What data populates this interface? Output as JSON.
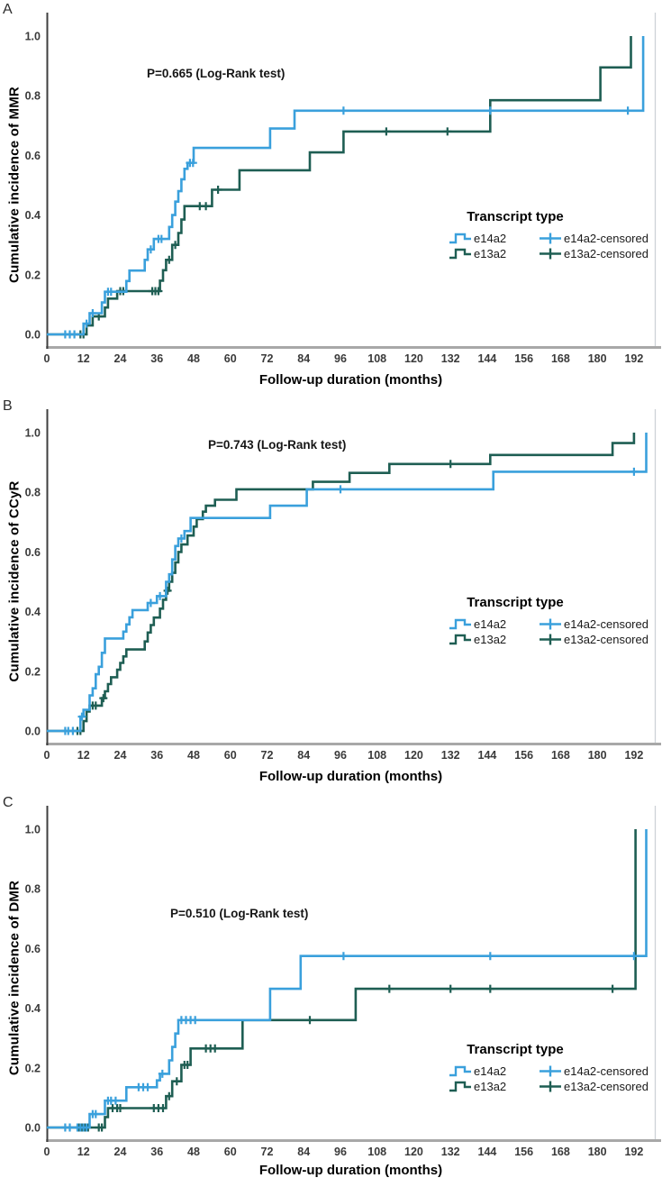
{
  "chart_data": [
    {
      "panel": "A",
      "type": "line",
      "subtype": "cumulative-incidence-step",
      "pvalue": "P=0.665 (Log-Rank test)",
      "xlabel": "Follow-up duration (months)",
      "ylabel": "Cumulative incidence of MMR",
      "xlim": [
        0,
        198.8
      ],
      "ylim": [
        0,
        1.0
      ],
      "xticks": [
        0,
        12,
        24,
        36,
        48,
        60,
        72,
        84,
        96,
        108,
        120,
        132,
        144,
        156,
        168,
        180,
        192
      ],
      "yticks": [
        0.0,
        0.2,
        0.4,
        0.6,
        0.8,
        1.0
      ],
      "grid": false,
      "legend": {
        "title": "Transcript type",
        "items": [
          "e14a2",
          "e13a2",
          "e14a2-censored",
          "e13a2-censored"
        ]
      },
      "series": [
        {
          "name": "e14a2",
          "color": "#3aa0dc",
          "steps": [
            [
              0,
              0
            ],
            [
              12,
              0.036
            ],
            [
              14,
              0.071
            ],
            [
              18,
              0.107
            ],
            [
              19,
              0.143
            ],
            [
              26,
              0.179
            ],
            [
              27,
              0.214
            ],
            [
              32,
              0.25
            ],
            [
              33,
              0.285
            ],
            [
              35,
              0.32
            ],
            [
              40,
              0.36
            ],
            [
              41,
              0.4
            ],
            [
              42,
              0.445
            ],
            [
              43,
              0.48
            ],
            [
              44,
              0.52
            ],
            [
              45,
              0.555
            ],
            [
              46,
              0.575
            ],
            [
              48,
              0.625
            ],
            [
              73,
              0.69
            ],
            [
              81,
              0.75
            ],
            [
              195,
              1.0
            ]
          ],
          "censored": [
            [
              6,
              0
            ],
            [
              7.5,
              0
            ],
            [
              9,
              0
            ],
            [
              13,
              0.036
            ],
            [
              15,
              0.071
            ],
            [
              20,
              0.143
            ],
            [
              21,
              0.143
            ],
            [
              34,
              0.285
            ],
            [
              36.5,
              0.32
            ],
            [
              37.5,
              0.32
            ],
            [
              46.8,
              0.575
            ],
            [
              47.8,
              0.575
            ],
            [
              97,
              0.75
            ],
            [
              145,
              0.75
            ],
            [
              190,
              0.75
            ]
          ]
        },
        {
          "name": "e13a2",
          "color": "#1e5e53",
          "steps": [
            [
              0,
              0
            ],
            [
              13,
              0.03
            ],
            [
              15,
              0.06
            ],
            [
              19,
              0.09
            ],
            [
              20,
              0.12
            ],
            [
              23,
              0.145
            ],
            [
              37,
              0.18
            ],
            [
              38,
              0.215
            ],
            [
              39,
              0.25
            ],
            [
              41,
              0.3
            ],
            [
              43,
              0.34
            ],
            [
              44,
              0.385
            ],
            [
              45,
              0.43
            ],
            [
              54,
              0.485
            ],
            [
              63,
              0.55
            ],
            [
              86,
              0.61
            ],
            [
              97,
              0.68
            ],
            [
              145,
              0.785
            ],
            [
              181,
              0.895
            ],
            [
              191,
              1.0
            ]
          ],
          "censored": [
            [
              11,
              0
            ],
            [
              12,
              0
            ],
            [
              17,
              0.06
            ],
            [
              24,
              0.145
            ],
            [
              25,
              0.145
            ],
            [
              34.5,
              0.145
            ],
            [
              35.5,
              0.145
            ],
            [
              36.5,
              0.145
            ],
            [
              40,
              0.25
            ],
            [
              42,
              0.3
            ],
            [
              50,
              0.43
            ],
            [
              52,
              0.43
            ],
            [
              56,
              0.485
            ],
            [
              111,
              0.68
            ],
            [
              131,
              0.68
            ]
          ]
        }
      ]
    },
    {
      "panel": "B",
      "type": "line",
      "subtype": "cumulative-incidence-step",
      "pvalue": "P=0.743 (Log-Rank test)",
      "xlabel": "Follow-up duration (months)",
      "ylabel": "Cumulative incidence of CCyR",
      "xlim": [
        0,
        198.8
      ],
      "ylim": [
        0,
        1.0
      ],
      "xticks": [
        0,
        12,
        24,
        36,
        48,
        60,
        72,
        84,
        96,
        108,
        120,
        132,
        144,
        156,
        168,
        180,
        192
      ],
      "yticks": [
        0.0,
        0.2,
        0.4,
        0.6,
        0.8,
        1.0
      ],
      "grid": false,
      "legend": {
        "title": "Transcript type",
        "items": [
          "e14a2",
          "e13a2",
          "e14a2-censored",
          "e13a2-censored"
        ]
      },
      "series": [
        {
          "name": "e14a2",
          "color": "#3aa0dc",
          "steps": [
            [
              0,
              0
            ],
            [
              11,
              0.048
            ],
            [
              12,
              0.071
            ],
            [
              14,
              0.119
            ],
            [
              15,
              0.143
            ],
            [
              16,
              0.19
            ],
            [
              17,
              0.215
            ],
            [
              18,
              0.262
            ],
            [
              19,
              0.31
            ],
            [
              25,
              0.333
            ],
            [
              26,
              0.357
            ],
            [
              27,
              0.381
            ],
            [
              28,
              0.405
            ],
            [
              33,
              0.429
            ],
            [
              36,
              0.452
            ],
            [
              39,
              0.5
            ],
            [
              40,
              0.525
            ],
            [
              41,
              0.575
            ],
            [
              42,
              0.62
            ],
            [
              43,
              0.645
            ],
            [
              45,
              0.67
            ],
            [
              47,
              0.714
            ],
            [
              73,
              0.755
            ],
            [
              85,
              0.81
            ],
            [
              146,
              0.869
            ],
            [
              196,
              1.0
            ]
          ],
          "censored": [
            [
              6,
              0
            ],
            [
              7,
              0
            ],
            [
              8.5,
              0
            ],
            [
              11.5,
              0.048
            ],
            [
              34,
              0.429
            ],
            [
              37,
              0.452
            ],
            [
              44,
              0.645
            ],
            [
              96,
              0.81
            ],
            [
              192,
              0.869
            ]
          ]
        },
        {
          "name": "e13a2",
          "color": "#1e5e53",
          "steps": [
            [
              0,
              0
            ],
            [
              12,
              0.033
            ],
            [
              13,
              0.065
            ],
            [
              14,
              0.085
            ],
            [
              18,
              0.11
            ],
            [
              19,
              0.133
            ],
            [
              20,
              0.157
            ],
            [
              21,
              0.18
            ],
            [
              23,
              0.205
            ],
            [
              24,
              0.228
            ],
            [
              25,
              0.25
            ],
            [
              26,
              0.273
            ],
            [
              32,
              0.3
            ],
            [
              33,
              0.33
            ],
            [
              34,
              0.355
            ],
            [
              35,
              0.38
            ],
            [
              37,
              0.41
            ],
            [
              38,
              0.44
            ],
            [
              39,
              0.47
            ],
            [
              40,
              0.5
            ],
            [
              41,
              0.53
            ],
            [
              42,
              0.565
            ],
            [
              43,
              0.6
            ],
            [
              44,
              0.625
            ],
            [
              46,
              0.655
            ],
            [
              48,
              0.685
            ],
            [
              49,
              0.71
            ],
            [
              51,
              0.735
            ],
            [
              52,
              0.755
            ],
            [
              55,
              0.775
            ],
            [
              62,
              0.81
            ],
            [
              87,
              0.835
            ],
            [
              99,
              0.865
            ],
            [
              112,
              0.895
            ],
            [
              145,
              0.925
            ],
            [
              185,
              0.965
            ],
            [
              192,
              1.0
            ]
          ],
          "censored": [
            [
              10,
              0
            ],
            [
              11,
              0
            ],
            [
              15,
              0.085
            ],
            [
              16,
              0.085
            ],
            [
              18.5,
              0.11
            ],
            [
              39.5,
              0.47
            ],
            [
              132,
              0.895
            ]
          ]
        }
      ]
    },
    {
      "panel": "C",
      "type": "line",
      "subtype": "cumulative-incidence-step",
      "pvalue": "P=0.510 (Log-Rank test)",
      "xlabel": "Follow-up duration (months)",
      "ylabel": "Cumulative incidence of DMR",
      "xlim": [
        0,
        198.8
      ],
      "ylim": [
        0,
        1.0
      ],
      "xticks": [
        0,
        12,
        24,
        36,
        48,
        60,
        72,
        84,
        96,
        108,
        120,
        132,
        144,
        156,
        168,
        180,
        192
      ],
      "yticks": [
        0.0,
        0.2,
        0.4,
        0.6,
        0.8,
        1.0
      ],
      "grid": false,
      "legend": {
        "title": "Transcript type",
        "items": [
          "e14a2",
          "e13a2",
          "e14a2-censored",
          "e13a2-censored"
        ]
      },
      "series": [
        {
          "name": "e14a2",
          "color": "#3aa0dc",
          "steps": [
            [
              0,
              0
            ],
            [
              14,
              0.045
            ],
            [
              19,
              0.09
            ],
            [
              26,
              0.135
            ],
            [
              36,
              0.158
            ],
            [
              37,
              0.18
            ],
            [
              40,
              0.225
            ],
            [
              41,
              0.27
            ],
            [
              42,
              0.315
            ],
            [
              43,
              0.36
            ],
            [
              73,
              0.465
            ],
            [
              83,
              0.575
            ],
            [
              196,
              1.0
            ]
          ],
          "censored": [
            [
              6,
              0
            ],
            [
              7.5,
              0
            ],
            [
              10,
              0
            ],
            [
              11,
              0
            ],
            [
              12,
              0
            ],
            [
              13,
              0
            ],
            [
              15,
              0.045
            ],
            [
              16,
              0.045
            ],
            [
              20,
              0.09
            ],
            [
              21,
              0.09
            ],
            [
              22.5,
              0.09
            ],
            [
              30,
              0.135
            ],
            [
              31.5,
              0.135
            ],
            [
              33,
              0.135
            ],
            [
              37.8,
              0.18
            ],
            [
              44,
              0.36
            ],
            [
              45.5,
              0.36
            ],
            [
              47,
              0.36
            ],
            [
              48.5,
              0.36
            ],
            [
              97,
              0.575
            ],
            [
              145,
              0.575
            ],
            [
              192,
              0.575
            ]
          ]
        },
        {
          "name": "e13a2",
          "color": "#1e5e53",
          "steps": [
            [
              0,
              0
            ],
            [
              19,
              0.035
            ],
            [
              20,
              0.065
            ],
            [
              39,
              0.105
            ],
            [
              41,
              0.155
            ],
            [
              44,
              0.21
            ],
            [
              47,
              0.265
            ],
            [
              64,
              0.36
            ],
            [
              101,
              0.465
            ],
            [
              192.5,
              1.0
            ]
          ],
          "censored": [
            [
              10.5,
              0
            ],
            [
              11.5,
              0
            ],
            [
              12.5,
              0
            ],
            [
              13.5,
              0
            ],
            [
              17,
              0
            ],
            [
              18,
              0
            ],
            [
              21.5,
              0.065
            ],
            [
              23,
              0.065
            ],
            [
              24,
              0.065
            ],
            [
              35,
              0.065
            ],
            [
              36.5,
              0.065
            ],
            [
              38,
              0.065
            ],
            [
              40,
              0.105
            ],
            [
              42.5,
              0.155
            ],
            [
              45,
              0.21
            ],
            [
              46,
              0.21
            ],
            [
              52,
              0.265
            ],
            [
              53.5,
              0.265
            ],
            [
              55,
              0.265
            ],
            [
              86,
              0.36
            ],
            [
              112,
              0.465
            ],
            [
              132,
              0.465
            ],
            [
              145,
              0.465
            ],
            [
              185,
              0.465
            ]
          ]
        }
      ]
    }
  ]
}
